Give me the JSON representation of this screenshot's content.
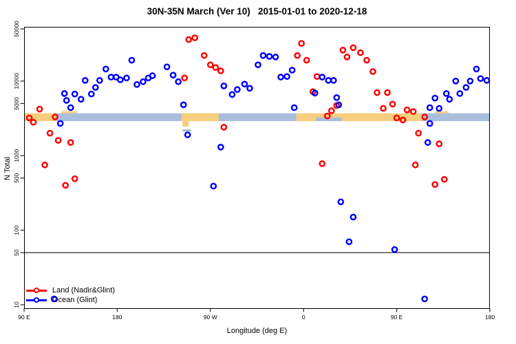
{
  "title": "30N-35N March (Ver 10)   2015-01-01 to 2020-12-18",
  "chart_data": {
    "type": "scatter",
    "title": "30N-35N March (Ver 10)   2015-01-01 to 2020-12-18",
    "xlabel": "Longitude (deg E)",
    "ylabel": "N Total",
    "x_range": [
      90,
      540
    ],
    "y_range": [
      10,
      50000
    ],
    "y_scale": "log",
    "grid": false,
    "x_ticks": [
      {
        "value": 90,
        "label": "90 E"
      },
      {
        "value": 180,
        "label": "180"
      },
      {
        "value": 270,
        "label": "90 W"
      },
      {
        "value": 360,
        "label": "0"
      },
      {
        "value": 450,
        "label": "90 E"
      },
      {
        "value": 540,
        "label": "180"
      }
    ],
    "y_ticks": [
      {
        "value": 10,
        "label": "10"
      },
      {
        "value": 50,
        "label": "50"
      },
      {
        "value": 100,
        "label": "100"
      },
      {
        "value": 500,
        "label": "500"
      },
      {
        "value": 1000,
        "label": "1000"
      },
      {
        "value": 5000,
        "label": "5000"
      },
      {
        "value": 10000,
        "label": "10000"
      },
      {
        "value": 50000,
        "label": "50000"
      }
    ],
    "reference_line_y": 50,
    "band": {
      "n_range": [
        2900,
        3700
      ],
      "colors": {
        "land": "#F6CE7D",
        "ocean": "#A9BEDC"
      },
      "segments": [
        {
          "type": "land",
          "lon": [
            90,
            120
          ]
        },
        {
          "type": "ocean",
          "lon": [
            120,
            242
          ]
        },
        {
          "type": "land",
          "lon": [
            242,
            278
          ]
        },
        {
          "type": "ocean",
          "lon": [
            278,
            353
          ]
        },
        {
          "type": "land",
          "lon": [
            353,
            474
          ]
        },
        {
          "type": "ocean",
          "lon": [
            474,
            540
          ]
        }
      ],
      "details": [
        {
          "type": "land",
          "lon": [
            126,
            141
          ],
          "n": [
            3700,
            3950
          ]
        },
        {
          "type": "land",
          "lon": [
            243,
            249
          ],
          "n": [
            2450,
            2900
          ]
        },
        {
          "type": "ocean",
          "lon": [
            243,
            251
          ],
          "n": [
            2100,
            2250
          ]
        },
        {
          "type": "ocean",
          "lon": [
            372,
            397
          ],
          "n": [
            2900,
            3250
          ]
        },
        {
          "type": "land",
          "lon": [
            487,
            500
          ],
          "n": [
            3700,
            3950
          ]
        }
      ]
    },
    "legend_position": "bottom-left",
    "series": [
      {
        "name": "Land (Nadir&Glint)",
        "color": "#FF0000",
        "marker": "open-circle",
        "points": [
          [
            95,
            3200
          ],
          [
            99,
            2800
          ],
          [
            105,
            4200
          ],
          [
            110,
            750
          ],
          [
            115,
            2000
          ],
          [
            120,
            3300
          ],
          [
            123,
            1600
          ],
          [
            130,
            400
          ],
          [
            135,
            1500
          ],
          [
            139,
            490
          ],
          [
            245,
            11000
          ],
          [
            249,
            36000
          ],
          [
            255,
            38000
          ],
          [
            264,
            22000
          ],
          [
            270,
            16500
          ],
          [
            275,
            15200
          ],
          [
            280,
            13700
          ],
          [
            283,
            2400
          ],
          [
            354,
            22000
          ],
          [
            358,
            32000
          ],
          [
            363,
            19000
          ],
          [
            369,
            7200
          ],
          [
            373,
            11500
          ],
          [
            378,
            780
          ],
          [
            383,
            3400
          ],
          [
            387,
            4000
          ],
          [
            392,
            4700
          ],
          [
            398,
            26000
          ],
          [
            402,
            21000
          ],
          [
            408,
            28000
          ],
          [
            415,
            24000
          ],
          [
            421,
            19000
          ],
          [
            427,
            13400
          ],
          [
            431,
            7000
          ],
          [
            437,
            4300
          ],
          [
            441,
            7000
          ],
          [
            446,
            4900
          ],
          [
            450,
            3200
          ],
          [
            456,
            3000
          ],
          [
            460,
            4100
          ],
          [
            466,
            3900
          ],
          [
            468,
            750
          ],
          [
            471,
            2000
          ],
          [
            477,
            3300
          ],
          [
            487,
            410
          ],
          [
            491,
            1440
          ],
          [
            496,
            480
          ]
        ]
      },
      {
        "name": "Ocean (Glint)",
        "color": "#0000FF",
        "marker": "open-circle",
        "points": [
          [
            119,
            12
          ],
          [
            125,
            2700
          ],
          [
            129,
            6800
          ],
          [
            131,
            5500
          ],
          [
            135,
            4400
          ],
          [
            139,
            6700
          ],
          [
            145,
            5700
          ],
          [
            149,
            10200
          ],
          [
            155,
            6700
          ],
          [
            159,
            8200
          ],
          [
            163,
            10200
          ],
          [
            169,
            14500
          ],
          [
            174,
            11300
          ],
          [
            179,
            11300
          ],
          [
            183,
            10400
          ],
          [
            189,
            11000
          ],
          [
            194,
            19000
          ],
          [
            199,
            9000
          ],
          [
            205,
            9800
          ],
          [
            210,
            11000
          ],
          [
            214,
            11800
          ],
          [
            228,
            15500
          ],
          [
            234,
            12000
          ],
          [
            239,
            9800
          ],
          [
            244,
            4800
          ],
          [
            248,
            1900
          ],
          [
            273,
            390
          ],
          [
            280,
            1300
          ],
          [
            283,
            8600
          ],
          [
            291,
            6600
          ],
          [
            296,
            7700
          ],
          [
            303,
            9100
          ],
          [
            308,
            8000
          ],
          [
            316,
            16500
          ],
          [
            321,
            22000
          ],
          [
            327,
            21400
          ],
          [
            333,
            21000
          ],
          [
            338,
            11300
          ],
          [
            344,
            11500
          ],
          [
            349,
            14000
          ],
          [
            351,
            4400
          ],
          [
            371,
            6900
          ],
          [
            378,
            11300
          ],
          [
            384,
            10200
          ],
          [
            389,
            10200
          ],
          [
            392,
            6000
          ],
          [
            394,
            4800
          ],
          [
            396,
            240
          ],
          [
            404,
            70
          ],
          [
            408,
            150
          ],
          [
            448,
            55
          ],
          [
            477,
            12
          ],
          [
            480,
            1500
          ],
          [
            482,
            2700
          ],
          [
            482,
            4400
          ],
          [
            487,
            5900
          ],
          [
            491,
            4300
          ],
          [
            498,
            6800
          ],
          [
            501,
            5700
          ],
          [
            507,
            10000
          ],
          [
            511,
            6800
          ],
          [
            517,
            8200
          ],
          [
            521,
            10000
          ],
          [
            527,
            14500
          ],
          [
            531,
            10800
          ],
          [
            537,
            10200
          ]
        ]
      }
    ]
  }
}
